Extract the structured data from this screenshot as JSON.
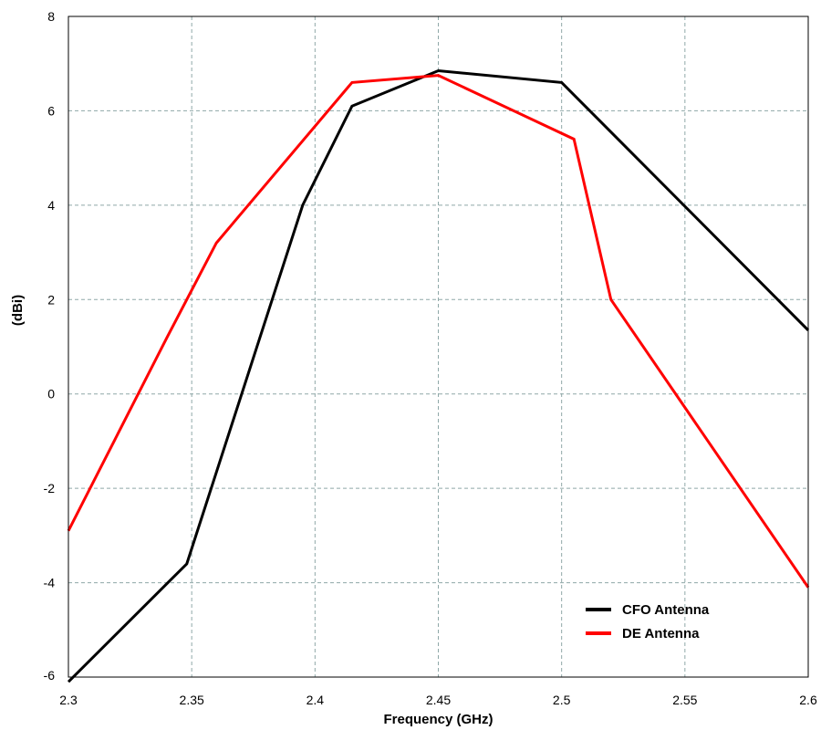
{
  "chart_data": {
    "type": "line",
    "title": "",
    "xlabel": "Frequency (GHz)",
    "ylabel": "(dBi)",
    "xlim": [
      2.3,
      2.6
    ],
    "ylim": [
      -6,
      8
    ],
    "x_ticks": [
      2.3,
      2.35,
      2.4,
      2.45,
      2.5,
      2.55,
      2.6
    ],
    "x_tick_labels": [
      "2.3",
      "2.35",
      "2.4",
      "2.45",
      "2.5",
      "2.55",
      "2.6"
    ],
    "y_ticks": [
      -6,
      -4,
      -2,
      0,
      2,
      4,
      6,
      8
    ],
    "y_tick_labels": [
      "-6",
      "-4",
      "-2",
      "0",
      "2",
      "4",
      "6",
      "8"
    ],
    "grid": true,
    "legend_position": "bottom-right",
    "series": [
      {
        "name": "CFO Antenna",
        "color": "#000000",
        "x": [
          2.3,
          2.348,
          2.395,
          2.415,
          2.45,
          2.5,
          2.6
        ],
        "y": [
          -6.1,
          -3.6,
          4.0,
          6.1,
          6.85,
          6.6,
          1.35
        ]
      },
      {
        "name": "DE Antenna",
        "color": "#ff0000",
        "x": [
          2.3,
          2.34,
          2.36,
          2.415,
          2.45,
          2.505,
          2.52,
          2.6
        ],
        "y": [
          -2.9,
          1.2,
          3.2,
          6.6,
          6.75,
          5.4,
          2.0,
          -4.1
        ]
      }
    ]
  }
}
